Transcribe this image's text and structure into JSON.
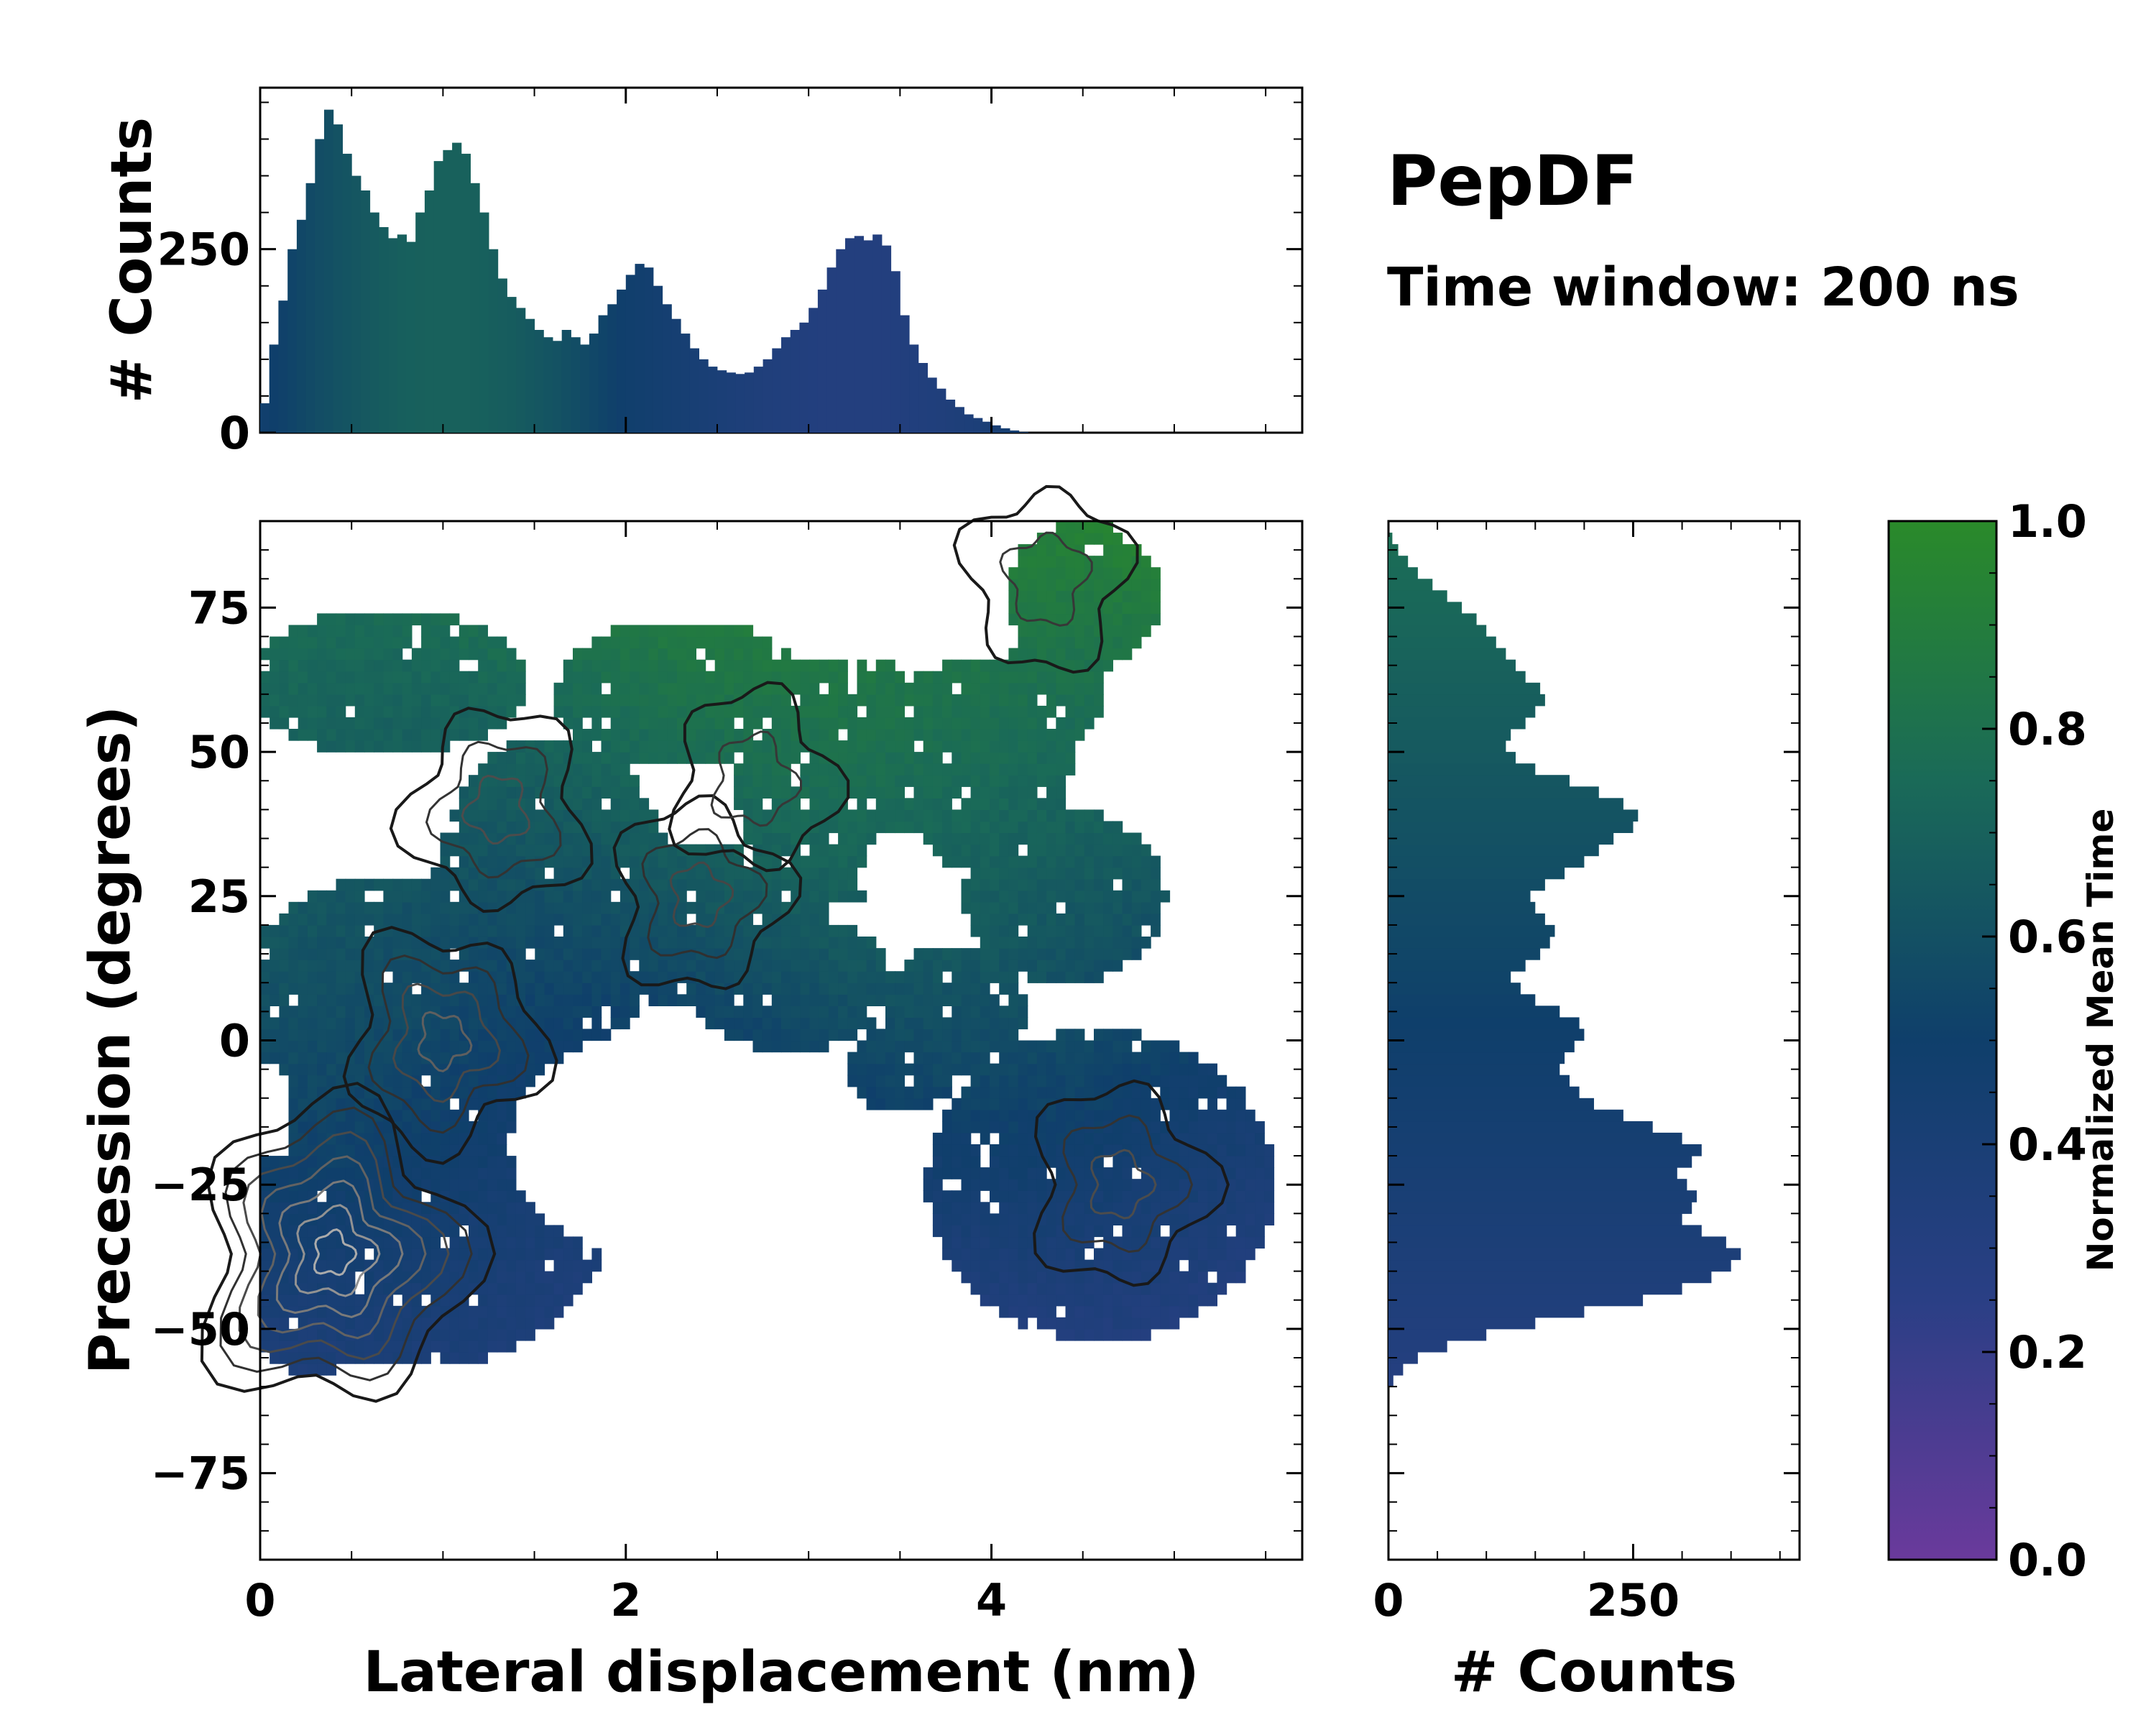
{
  "title": "PepDF",
  "subtitle": "Time window: 200 ns",
  "colors": {
    "purple": "#6a3a9c",
    "blue": "#2a3f85",
    "navy": "#0f3f6b",
    "teal": "#1a6a58",
    "green": "#2a8a2a",
    "contour_dark": "#151515",
    "contour_light": "#c8c8c8"
  },
  "chart_data": [
    {
      "id": "main",
      "type": "heatmap",
      "xlabel": "Lateral displacement (nm)",
      "ylabel": "Precession (degrees)",
      "xlim": [
        0,
        5.7
      ],
      "ylim": [
        -90,
        90
      ],
      "xticks": [
        0,
        2,
        4
      ],
      "yticks": [
        -75,
        -50,
        -25,
        0,
        25,
        50,
        75
      ],
      "ytick_labels": [
        "−75",
        "−50",
        "−25",
        "0",
        "25",
        "50",
        "75"
      ],
      "density_peaks": [
        {
          "x": 0.4,
          "y": -37,
          "weight": 1.0
        },
        {
          "x": 1.0,
          "y": 0,
          "weight": 0.55
        },
        {
          "x": 1.3,
          "y": 40,
          "weight": 0.45
        },
        {
          "x": 2.4,
          "y": 25,
          "weight": 0.4
        },
        {
          "x": 2.7,
          "y": 45,
          "weight": 0.35
        },
        {
          "x": 4.3,
          "y": 80,
          "weight": 0.35
        },
        {
          "x": 4.7,
          "y": -25,
          "weight": 0.45
        }
      ]
    },
    {
      "id": "top",
      "type": "bar",
      "ylabel": "# Counts",
      "xlim": [
        0,
        5.7
      ],
      "ylim": [
        0,
        470
      ],
      "yticks": [
        0,
        250
      ],
      "x": [
        0.05,
        0.1,
        0.15,
        0.2,
        0.25,
        0.3,
        0.35,
        0.4,
        0.45,
        0.5,
        0.55,
        0.6,
        0.65,
        0.7,
        0.75,
        0.8,
        0.85,
        0.9,
        0.95,
        1.0,
        1.05,
        1.1,
        1.15,
        1.2,
        1.25,
        1.3,
        1.35,
        1.4,
        1.45,
        1.5,
        1.55,
        1.6,
        1.65,
        1.7,
        1.75,
        1.8,
        1.85,
        1.9,
        1.95,
        2.0,
        2.05,
        2.1,
        2.15,
        2.2,
        2.25,
        2.3,
        2.35,
        2.4,
        2.45,
        2.5,
        2.55,
        2.6,
        2.65,
        2.7,
        2.75,
        2.8,
        2.85,
        2.9,
        2.95,
        3.0,
        3.05,
        3.1,
        3.15,
        3.2,
        3.25,
        3.3,
        3.35,
        3.4,
        3.45,
        3.5,
        3.55,
        3.6,
        3.65,
        3.7,
        3.75,
        3.8,
        3.85,
        3.9,
        3.95,
        4.0,
        4.05,
        4.1,
        4.15,
        4.2,
        4.25,
        4.3,
        4.35,
        4.4,
        4.45,
        4.5,
        4.55,
        4.6,
        4.65,
        4.7,
        4.75,
        4.8,
        4.85,
        4.9,
        4.95,
        5.0,
        5.05,
        5.1,
        5.15,
        5.2,
        5.25,
        5.3,
        5.35,
        5.4,
        5.45,
        5.5,
        5.55,
        5.6
      ],
      "values": [
        40,
        120,
        180,
        250,
        290,
        340,
        400,
        440,
        420,
        380,
        350,
        330,
        300,
        280,
        265,
        270,
        260,
        300,
        330,
        370,
        385,
        395,
        380,
        340,
        300,
        250,
        210,
        185,
        170,
        155,
        140,
        130,
        125,
        140,
        130,
        120,
        135,
        160,
        175,
        195,
        215,
        230,
        225,
        200,
        175,
        155,
        135,
        115,
        100,
        90,
        85,
        82,
        80,
        82,
        90,
        100,
        115,
        130,
        140,
        150,
        170,
        195,
        225,
        250,
        265,
        268,
        262,
        270,
        255,
        220,
        160,
        120,
        95,
        75,
        60,
        45,
        35,
        25,
        20,
        15,
        10,
        6,
        3,
        1,
        0,
        0,
        0,
        0,
        0,
        0,
        0,
        0,
        0,
        0,
        0,
        0,
        0,
        0,
        0,
        0,
        0,
        0,
        0,
        0,
        0,
        0,
        0,
        0,
        0,
        0,
        0,
        0
      ]
    },
    {
      "id": "right",
      "type": "bar",
      "xlabel": "# Counts",
      "xlim": [
        0,
        420
      ],
      "xticks": [
        0,
        250
      ],
      "y": [
        -59,
        -57,
        -55,
        -53,
        -51,
        -49,
        -47,
        -45,
        -43,
        -41,
        -39,
        -37,
        -35,
        -33,
        -31,
        -29,
        -27,
        -25,
        -23,
        -21,
        -19,
        -17,
        -15,
        -13,
        -11,
        -9,
        -7,
        -5,
        -3,
        -1,
        1,
        3,
        5,
        7,
        9,
        11,
        13,
        15,
        17,
        19,
        21,
        23,
        25,
        27,
        29,
        31,
        33,
        35,
        37,
        39,
        41,
        43,
        45,
        47,
        49,
        51,
        53,
        55,
        57,
        59,
        61,
        63,
        65,
        67,
        69,
        71,
        73,
        75,
        77,
        79,
        81,
        83,
        85,
        87,
        89
      ],
      "values": [
        5,
        15,
        30,
        60,
        100,
        150,
        200,
        260,
        300,
        330,
        350,
        360,
        345,
        320,
        300,
        310,
        315,
        305,
        295,
        310,
        320,
        300,
        270,
        240,
        210,
        195,
        185,
        175,
        180,
        190,
        200,
        195,
        175,
        150,
        135,
        125,
        140,
        155,
        165,
        170,
        160,
        150,
        145,
        160,
        180,
        200,
        215,
        230,
        250,
        255,
        240,
        215,
        185,
        150,
        130,
        120,
        125,
        140,
        150,
        160,
        155,
        140,
        130,
        120,
        110,
        100,
        90,
        75,
        60,
        45,
        30,
        20,
        10,
        4,
        1
      ]
    },
    {
      "id": "colorbar",
      "type": "colorbar",
      "label": "Normalized Mean Time",
      "range": [
        0,
        1
      ],
      "ticks": [
        "0.0",
        "0.2",
        "0.4",
        "0.6",
        "0.8",
        "1.0"
      ]
    }
  ]
}
